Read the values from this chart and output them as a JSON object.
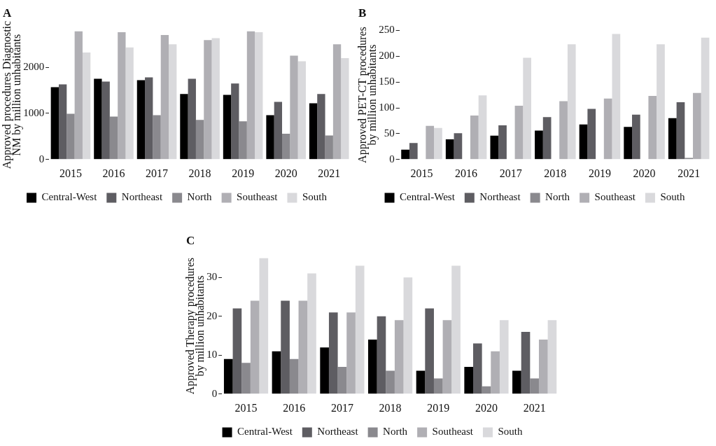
{
  "chart_data": [
    {
      "type": "bar",
      "title": "A",
      "ylabel": "Approved procedures Diagnostic NM by million unhabitants",
      "categories": [
        "2015",
        "2016",
        "2017",
        "2018",
        "2019",
        "2020",
        "2021"
      ],
      "ylim": [
        0,
        2800
      ],
      "yticks": [
        0,
        1000,
        2000
      ],
      "grid": false,
      "legend": "bottom",
      "series": [
        {
          "name": "Central-West",
          "color": "#000000",
          "values": [
            1570,
            1750,
            1720,
            1420,
            1400,
            960,
            1220
          ]
        },
        {
          "name": "Northeast",
          "color": "#5e5d62",
          "values": [
            1630,
            1690,
            1780,
            1750,
            1650,
            1250,
            1420
          ]
        },
        {
          "name": "North",
          "color": "#8a898e",
          "values": [
            990,
            930,
            960,
            860,
            830,
            560,
            520
          ]
        },
        {
          "name": "Southeast",
          "color": "#b0afb4",
          "values": [
            2780,
            2760,
            2700,
            2590,
            2780,
            2250,
            2500
          ]
        },
        {
          "name": "South",
          "color": "#d9d9dc",
          "values": [
            2320,
            2430,
            2500,
            2630,
            2760,
            2130,
            2200
          ]
        }
      ]
    },
    {
      "type": "bar",
      "title": "B",
      "ylabel": "Approved PET-CT procedures by million unhabitants",
      "categories": [
        "2015",
        "2016",
        "2017",
        "2018",
        "2019",
        "2020",
        "2021"
      ],
      "ylim": [
        0,
        250
      ],
      "yticks": [
        0,
        50,
        100,
        150,
        200,
        250
      ],
      "grid": false,
      "legend": "bottom",
      "series": [
        {
          "name": "Central-West",
          "color": "#000000",
          "values": [
            19,
            39,
            46,
            56,
            68,
            63,
            80
          ]
        },
        {
          "name": "Northeast",
          "color": "#5e5d62",
          "values": [
            32,
            51,
            66,
            82,
            98,
            87,
            111
          ]
        },
        {
          "name": "North",
          "color": "#8a898e",
          "values": [
            0,
            0,
            0,
            0,
            0,
            0,
            3
          ]
        },
        {
          "name": "Southeast",
          "color": "#b0afb4",
          "values": [
            65,
            85,
            104,
            113,
            118,
            123,
            129
          ]
        },
        {
          "name": "South",
          "color": "#d9d9dc",
          "values": [
            61,
            124,
            197,
            223,
            243,
            223,
            236
          ]
        }
      ]
    },
    {
      "type": "bar",
      "title": "C",
      "ylabel": "Approved Therapy procedures by million unhabitants",
      "categories": [
        "2015",
        "2016",
        "2017",
        "2018",
        "2019",
        "2020",
        "2021"
      ],
      "ylim": [
        0,
        35
      ],
      "yticks": [
        0,
        10,
        20,
        30
      ],
      "grid": false,
      "legend": "bottom",
      "series": [
        {
          "name": "Central-West",
          "color": "#000000",
          "values": [
            9,
            11,
            12,
            14,
            6,
            7,
            6
          ]
        },
        {
          "name": "Northeast",
          "color": "#5e5d62",
          "values": [
            22,
            24,
            21,
            20,
            22,
            13,
            16
          ]
        },
        {
          "name": "North",
          "color": "#8a898e",
          "values": [
            8,
            9,
            7,
            6,
            4,
            2,
            4
          ]
        },
        {
          "name": "Southeast",
          "color": "#b0afb4",
          "values": [
            24,
            24,
            21,
            19,
            19,
            11,
            14
          ]
        },
        {
          "name": "South",
          "color": "#d9d9dc",
          "values": [
            35,
            31,
            33,
            30,
            33,
            19,
            19
          ]
        }
      ]
    }
  ]
}
